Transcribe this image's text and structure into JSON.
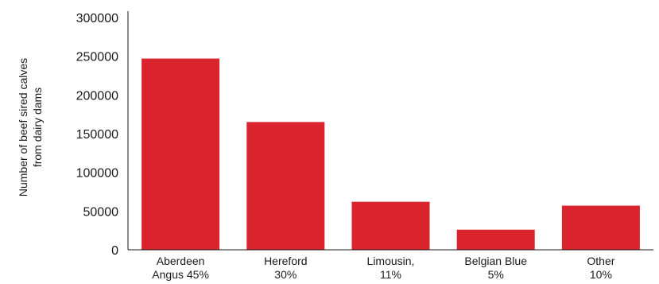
{
  "chart_data": {
    "type": "bar",
    "categories": [
      [
        "Aberdeen",
        "Angus 45%"
      ],
      [
        "Hereford",
        "30%"
      ],
      [
        "Limousin,",
        "11%"
      ],
      [
        "Belgian Blue",
        "5%"
      ],
      [
        "Other",
        "10%"
      ]
    ],
    "values": [
      247000,
      165000,
      62000,
      26000,
      57000
    ],
    "ylabel": [
      "Number of beef sired calves",
      "from dairy dams"
    ],
    "ylim": [
      0,
      300000
    ],
    "yticks": [
      "0",
      "50000",
      "100000",
      "150000",
      "200000",
      "250000",
      "300000"
    ],
    "grid": false,
    "bar_color": "#d9232d"
  }
}
